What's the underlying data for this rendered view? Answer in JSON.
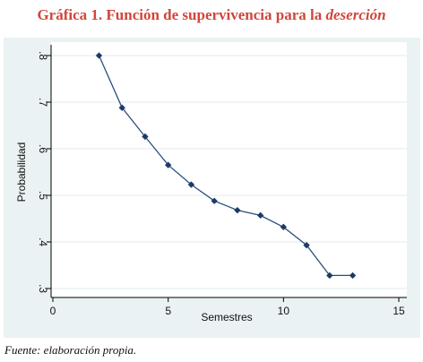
{
  "figure": {
    "title_main": "Gráfica 1. Función de supervivencia para la ",
    "title_italic": "deserción",
    "source": "Fuente: elaboración propia."
  },
  "chart_data": {
    "type": "line",
    "xlabel": "Semestres",
    "ylabel": "Probabilidad",
    "xlim": [
      0,
      15
    ],
    "ylim": [
      0.3,
      0.8
    ],
    "x_ticks": [
      0,
      5,
      10,
      15
    ],
    "x_tick_labels": [
      "0",
      "5",
      "10",
      "15"
    ],
    "y_ticks": [
      0.3,
      0.4,
      0.5,
      0.6,
      0.7,
      0.8
    ],
    "y_tick_labels": [
      ".3",
      ".4",
      ".5",
      ".6",
      ".7",
      ".8"
    ],
    "grid": "horizontal",
    "legend": "none",
    "series": [
      {
        "x": [
          2,
          3,
          4,
          5,
          6,
          7,
          8,
          9,
          10,
          11,
          12,
          13
        ],
        "y": [
          0.8,
          0.688,
          0.626,
          0.565,
          0.523,
          0.488,
          0.468,
          0.457,
          0.432,
          0.393,
          0.328,
          0.328
        ]
      }
    ],
    "colors": {
      "line": "#2b4f7a",
      "marker": "#1e3a66",
      "background": "#eaf2f3",
      "plot_area": "#ffffff",
      "grid": "#e3eaec"
    }
  }
}
